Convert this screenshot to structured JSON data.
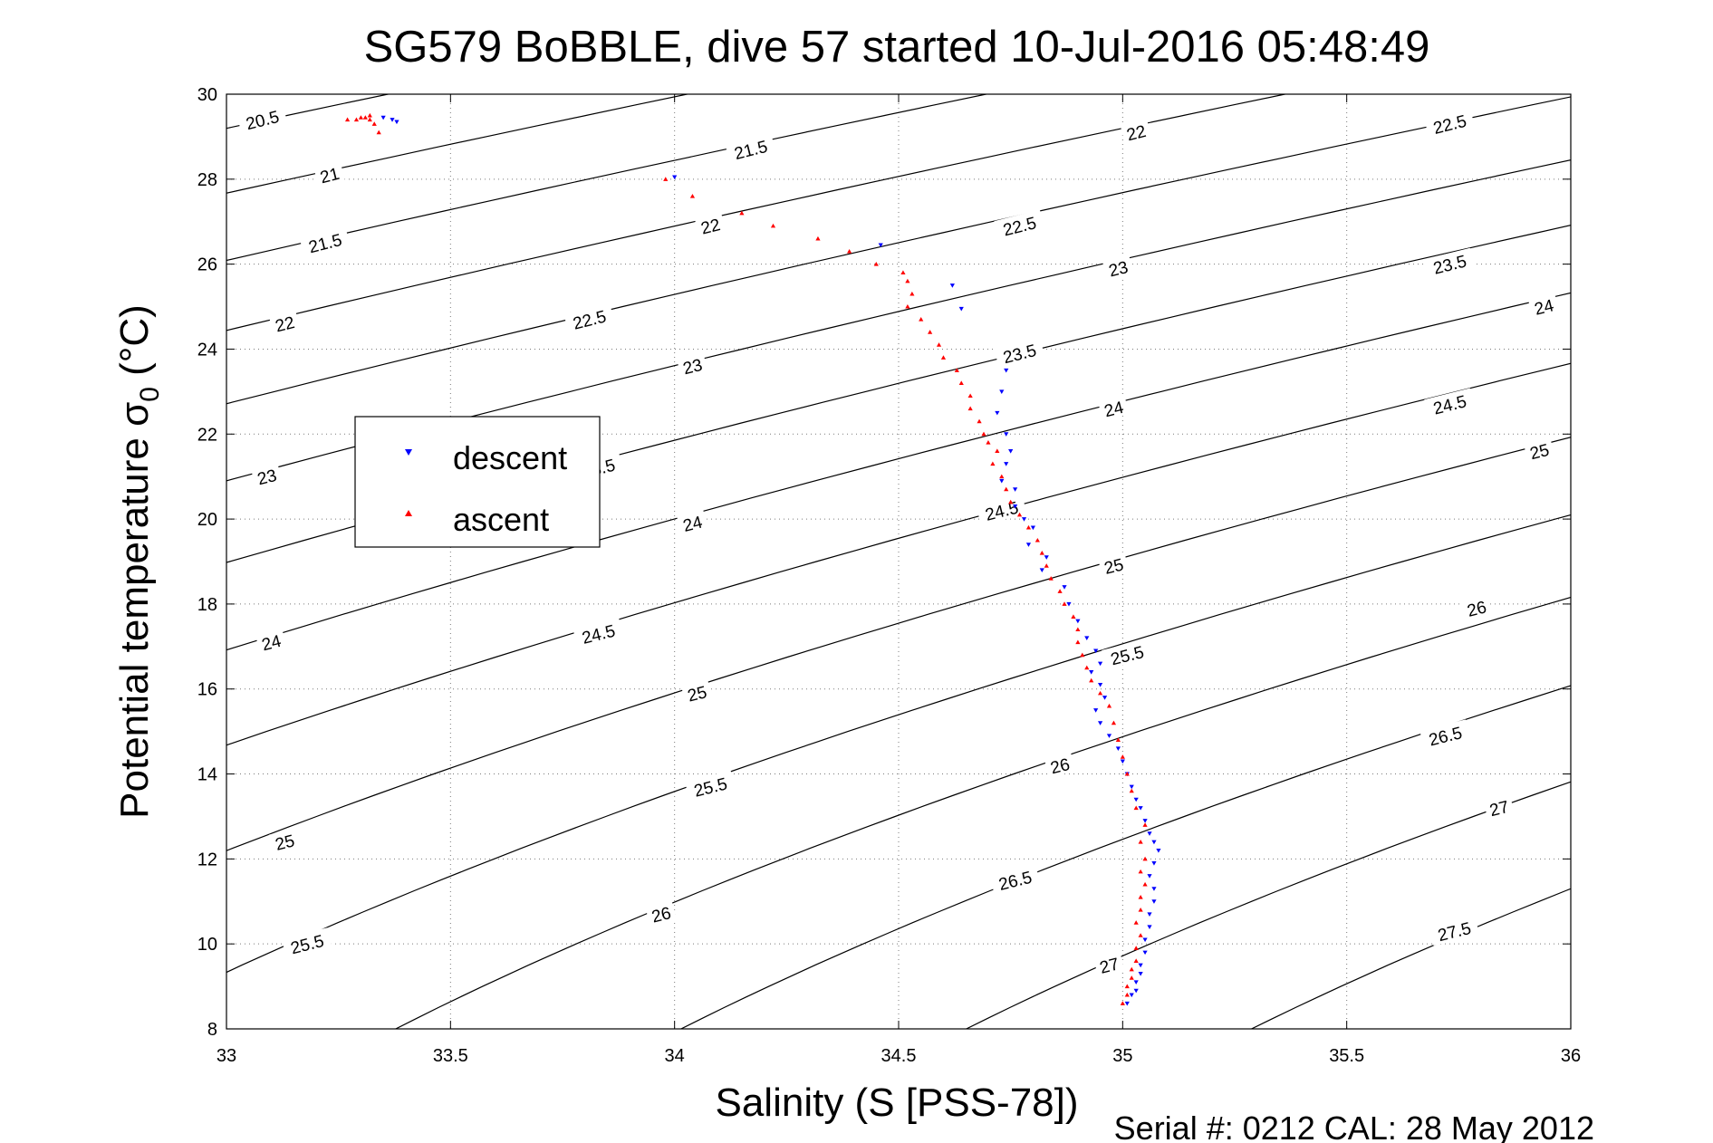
{
  "chart_data": {
    "type": "scatter",
    "title": "SG579 BoBBLE, dive 57 started 10-Jul-2016 05:48:49",
    "xlabel": "Salinity (S [PSS-78])",
    "ylabel_main": "Potential temperature σ",
    "ylabel_sub": "0",
    "ylabel_unit": " (°C)",
    "footer": "Serial #: 0212  CAL: 28 May 2012",
    "xlim": [
      33,
      36
    ],
    "ylim": [
      8,
      30
    ],
    "xticks": [
      "33",
      "33.5",
      "34",
      "34.5",
      "35",
      "35.5",
      "36"
    ],
    "yticks": [
      "8",
      "10",
      "12",
      "14",
      "16",
      "18",
      "20",
      "22",
      "24",
      "26",
      "28",
      "30"
    ],
    "grid": true,
    "legend_position": "left-middle",
    "contour_levels": [
      20.5,
      21,
      21.5,
      22,
      22.5,
      23,
      23.5,
      24,
      24.5,
      25,
      25.5,
      26,
      26.5,
      27,
      27.5
    ],
    "contour_label_points": [
      {
        "label": "20.5",
        "x": 33.08,
        "y": 29.4
      },
      {
        "label": "21",
        "x": 33.23,
        "y": 28.1
      },
      {
        "label": "21.5",
        "x": 33.22,
        "y": 26.5
      },
      {
        "label": "22",
        "x": 33.13,
        "y": 24.6
      },
      {
        "label": "23",
        "x": 33.09,
        "y": 21.0
      },
      {
        "label": "24",
        "x": 33.1,
        "y": 17.1
      },
      {
        "label": "25",
        "x": 33.13,
        "y": 12.4
      },
      {
        "label": "25.5",
        "x": 33.18,
        "y": 10.0
      },
      {
        "label": "21.5",
        "x": 34.17,
        "y": 28.7
      },
      {
        "label": "22",
        "x": 34.08,
        "y": 26.9
      },
      {
        "label": "22.5",
        "x": 33.81,
        "y": 24.7
      },
      {
        "label": "23",
        "x": 34.04,
        "y": 23.6
      },
      {
        "label": "23.5",
        "x": 33.83,
        "y": 21.2
      },
      {
        "label": "24",
        "x": 34.04,
        "y": 19.9
      },
      {
        "label": "24.5",
        "x": 33.83,
        "y": 17.3
      },
      {
        "label": "25",
        "x": 34.05,
        "y": 15.9
      },
      {
        "label": "25.5",
        "x": 34.08,
        "y": 13.7
      },
      {
        "label": "26",
        "x": 33.97,
        "y": 10.7
      },
      {
        "label": "22",
        "x": 35.03,
        "y": 29.1
      },
      {
        "label": "22.5",
        "x": 34.77,
        "y": 26.9
      },
      {
        "label": "23",
        "x": 34.99,
        "y": 25.9
      },
      {
        "label": "23.5",
        "x": 34.77,
        "y": 23.9
      },
      {
        "label": "24",
        "x": 34.98,
        "y": 22.6
      },
      {
        "label": "24.5",
        "x": 34.73,
        "y": 20.2
      },
      {
        "label": "25",
        "x": 34.98,
        "y": 18.9
      },
      {
        "label": "25.5",
        "x": 35.01,
        "y": 16.8
      },
      {
        "label": "26",
        "x": 34.86,
        "y": 14.2
      },
      {
        "label": "26.5",
        "x": 34.76,
        "y": 11.5
      },
      {
        "label": "27",
        "x": 34.97,
        "y": 9.5
      },
      {
        "label": "22.5",
        "x": 35.73,
        "y": 29.3
      },
      {
        "label": "23.5",
        "x": 35.73,
        "y": 26.0
      },
      {
        "label": "24",
        "x": 35.94,
        "y": 25.0
      },
      {
        "label": "24.5",
        "x": 35.73,
        "y": 22.7
      },
      {
        "label": "25",
        "x": 35.93,
        "y": 21.6
      },
      {
        "label": "26",
        "x": 35.79,
        "y": 17.9
      },
      {
        "label": "26.5",
        "x": 35.72,
        "y": 14.9
      },
      {
        "label": "27",
        "x": 35.84,
        "y": 13.2
      },
      {
        "label": "27.5",
        "x": 35.74,
        "y": 10.3
      }
    ],
    "series": [
      {
        "name": "descent",
        "color": "#0000ff",
        "marker": "triangle-down",
        "x": [
          33.35,
          33.37,
          33.38,
          34.0,
          34.46,
          34.62,
          34.64,
          34.74,
          34.73,
          34.72,
          34.74,
          34.75,
          34.74,
          34.73,
          34.76,
          34.76,
          34.78,
          34.8,
          34.79,
          34.83,
          34.82,
          34.87,
          34.88,
          34.9,
          34.92,
          34.94,
          34.95,
          34.93,
          34.95,
          34.96,
          34.94,
          34.95,
          34.97,
          34.99,
          35.0,
          35.01,
          35.02,
          35.03,
          35.04,
          35.05,
          35.06,
          35.07,
          35.08,
          35.07,
          35.06,
          35.07,
          35.07,
          35.06,
          35.06,
          35.05,
          35.05,
          35.04,
          35.04,
          35.03,
          35.03,
          35.02,
          35.01
        ],
        "y": [
          29.45,
          29.4,
          29.35,
          28.05,
          26.45,
          25.5,
          24.95,
          23.5,
          23.0,
          22.5,
          22.0,
          21.6,
          21.3,
          20.9,
          20.7,
          20.3,
          20.0,
          19.8,
          19.4,
          19.1,
          18.8,
          18.4,
          18.0,
          17.6,
          17.2,
          16.9,
          16.6,
          16.4,
          16.1,
          15.8,
          15.5,
          15.2,
          14.9,
          14.6,
          14.3,
          14.0,
          13.7,
          13.4,
          13.2,
          12.9,
          12.6,
          12.4,
          12.2,
          11.9,
          11.6,
          11.3,
          11.0,
          10.7,
          10.4,
          10.1,
          9.8,
          9.5,
          9.3,
          9.1,
          8.9,
          8.8,
          8.6
        ]
      },
      {
        "name": "ascent",
        "color": "#ff0000",
        "marker": "triangle-up",
        "x": [
          33.27,
          33.29,
          33.3,
          33.31,
          33.32,
          33.33,
          33.34,
          33.32,
          33.98,
          34.04,
          34.15,
          34.22,
          34.32,
          34.39,
          34.45,
          34.51,
          34.52,
          34.53,
          34.52,
          34.55,
          34.57,
          34.59,
          34.6,
          34.63,
          34.64,
          34.66,
          34.66,
          34.68,
          34.69,
          34.7,
          34.72,
          34.71,
          34.73,
          34.74,
          34.75,
          34.77,
          34.79,
          34.81,
          34.82,
          34.83,
          34.84,
          34.86,
          34.87,
          34.89,
          34.9,
          34.9,
          34.91,
          34.92,
          34.93,
          34.95,
          34.97,
          34.98,
          34.99,
          35.0,
          35.01,
          35.02,
          35.03,
          35.05,
          35.04,
          35.05,
          35.04,
          35.05,
          35.04,
          35.04,
          35.03,
          35.04,
          35.03,
          35.03,
          35.02,
          35.02,
          35.01,
          35.01,
          35.0
        ],
        "y": [
          29.4,
          29.4,
          29.45,
          29.45,
          29.4,
          29.3,
          29.1,
          29.5,
          28.0,
          27.6,
          27.2,
          26.9,
          26.6,
          26.3,
          26.0,
          25.8,
          25.6,
          25.3,
          25.0,
          24.7,
          24.4,
          24.1,
          23.8,
          23.5,
          23.2,
          22.9,
          22.6,
          22.3,
          22.0,
          21.8,
          21.6,
          21.3,
          21.0,
          20.7,
          20.4,
          20.1,
          19.8,
          19.5,
          19.2,
          18.9,
          18.6,
          18.3,
          18.0,
          17.7,
          17.4,
          17.1,
          16.8,
          16.5,
          16.2,
          15.9,
          15.6,
          15.2,
          14.8,
          14.4,
          14.0,
          13.6,
          13.2,
          12.8,
          12.4,
          12.0,
          11.7,
          11.4,
          11.1,
          10.8,
          10.5,
          10.2,
          9.9,
          9.6,
          9.4,
          9.2,
          9.0,
          8.8,
          8.6
        ]
      }
    ]
  }
}
